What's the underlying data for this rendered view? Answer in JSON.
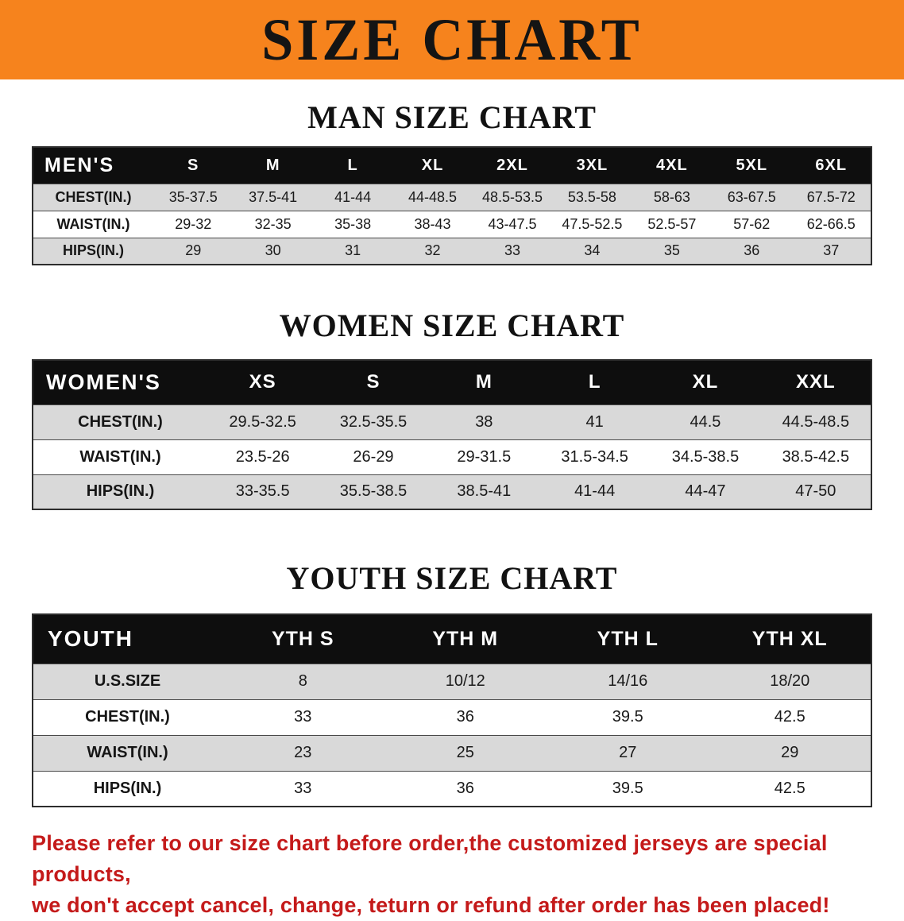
{
  "banner": {
    "title": "SIZE CHART",
    "bg_color": "#f6831d",
    "text_color": "#141414"
  },
  "sections": {
    "men": {
      "title": "MAN SIZE CHART",
      "table": {
        "header": [
          "MEN'S",
          "S",
          "M",
          "L",
          "XL",
          "2XL",
          "3XL",
          "4XL",
          "5XL",
          "6XL"
        ],
        "rows": [
          {
            "label": "CHEST(IN.)",
            "values": [
              "35-37.5",
              "37.5-41",
              "41-44",
              "44-48.5",
              "48.5-53.5",
              "53.5-58",
              "58-63",
              "63-67.5",
              "67.5-72"
            ]
          },
          {
            "label": "WAIST(IN.)",
            "values": [
              "29-32",
              "32-35",
              "35-38",
              "38-43",
              "43-47.5",
              "47.5-52.5",
              "52.5-57",
              "57-62",
              "62-66.5"
            ]
          },
          {
            "label": "HIPS(IN.)",
            "values": [
              "29",
              "30",
              "31",
              "32",
              "33",
              "34",
              "35",
              "36",
              "37"
            ]
          }
        ]
      }
    },
    "women": {
      "title": "WOMEN SIZE CHART",
      "table": {
        "header": [
          "WOMEN'S",
          "XS",
          "S",
          "M",
          "L",
          "XL",
          "XXL"
        ],
        "rows": [
          {
            "label": "CHEST(IN.)",
            "values": [
              "29.5-32.5",
              "32.5-35.5",
              "38",
              "41",
              "44.5",
              "44.5-48.5"
            ]
          },
          {
            "label": "WAIST(IN.)",
            "values": [
              "23.5-26",
              "26-29",
              "29-31.5",
              "31.5-34.5",
              "34.5-38.5",
              "38.5-42.5"
            ]
          },
          {
            "label": "HIPS(IN.)",
            "values": [
              "33-35.5",
              "35.5-38.5",
              "38.5-41",
              "41-44",
              "44-47",
              "47-50"
            ]
          }
        ]
      }
    },
    "youth": {
      "title": "YOUTH SIZE CHART",
      "table": {
        "header": [
          "YOUTH",
          "YTH S",
          "YTH M",
          "YTH L",
          "YTH XL"
        ],
        "rows": [
          {
            "label": "U.S.SIZE",
            "values": [
              "8",
              "10/12",
              "14/16",
              "18/20"
            ]
          },
          {
            "label": "CHEST(IN.)",
            "values": [
              "33",
              "36",
              "39.5",
              "42.5"
            ]
          },
          {
            "label": "WAIST(IN.)",
            "values": [
              "23",
              "25",
              "27",
              "29"
            ]
          },
          {
            "label": "HIPS(IN.)",
            "values": [
              "33",
              "36",
              "39.5",
              "42.5"
            ]
          }
        ]
      }
    }
  },
  "disclaimer": {
    "line1": "Please refer to our size chart before order,the customized jerseys are special products,",
    "line2": "we don't accept cancel, change, teturn or refund after order has been placed!",
    "text_color": "#c41a1a"
  }
}
